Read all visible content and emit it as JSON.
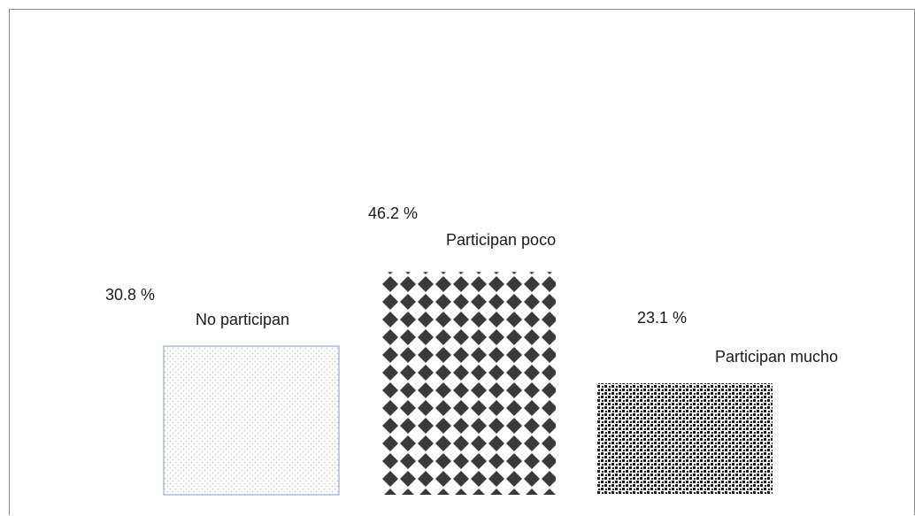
{
  "chart_data": {
    "type": "bar",
    "categories": [
      "No participan",
      "Participan poco",
      "Participan mucho"
    ],
    "values": [
      30.8,
      46.2,
      23.1
    ],
    "value_labels": [
      "30.8 %",
      "46.2 %",
      "23.1 %"
    ],
    "ylim": [
      0,
      100
    ],
    "grid": false,
    "legend": "none",
    "patterns": [
      "light-dots",
      "diamond-checker",
      "dense-dots"
    ],
    "colors": {
      "outline_first": "#a9bde3",
      "dark": "#3a3a3a",
      "frame": "#8c8c8c"
    }
  }
}
